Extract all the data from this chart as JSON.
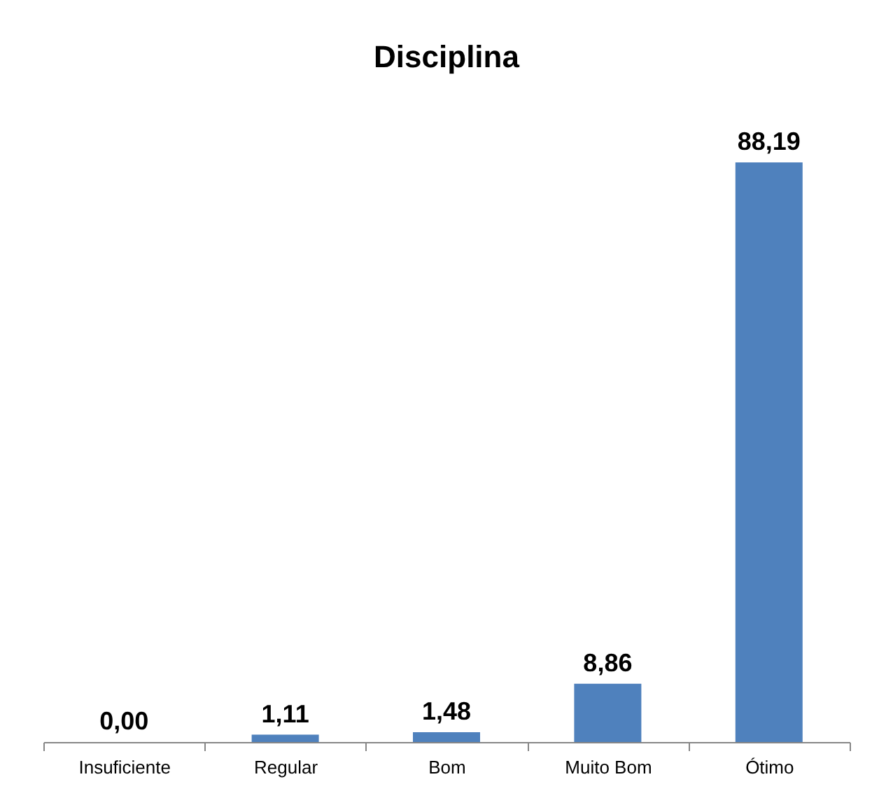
{
  "chart_data": {
    "type": "bar",
    "title": "Disciplina",
    "categories": [
      "Insuficiente",
      "Regular",
      "Bom",
      "Muito Bom",
      "Ótimo"
    ],
    "values": [
      0.0,
      1.11,
      1.48,
      8.86,
      88.19
    ],
    "value_labels": [
      "0,00",
      "1,11",
      "1,48",
      "8,86",
      "88,19"
    ],
    "color": "#4f81bd",
    "grid": false,
    "tick_labels": "x"
  }
}
